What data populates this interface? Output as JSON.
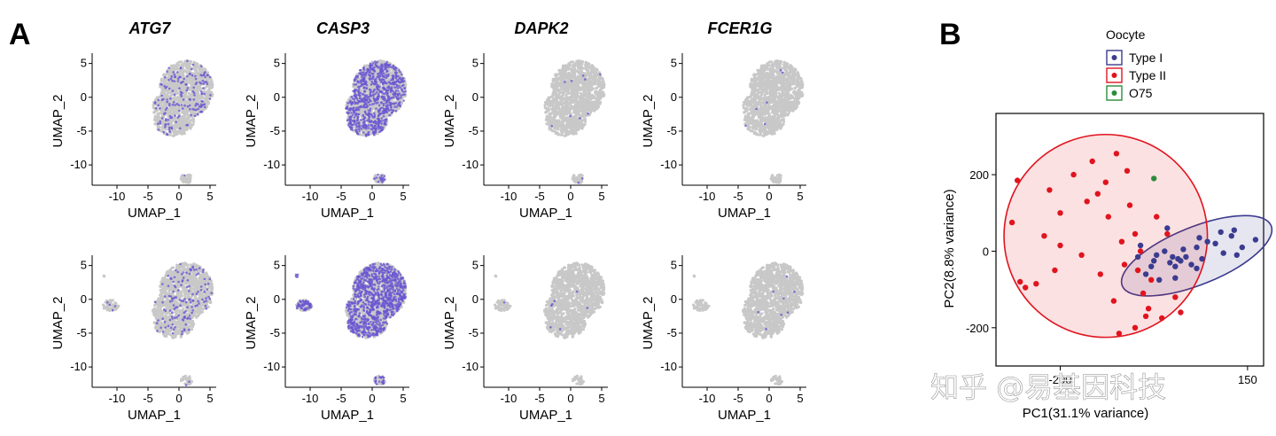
{
  "panel_labels": {
    "a": "A",
    "b": "B"
  },
  "watermark": "知乎 @易基因科技",
  "colors": {
    "background_cells": "#c8c8c8",
    "expression": "#6a56d2",
    "type1": "#3b3b8f",
    "type2": "#e0141e",
    "o75": "#2e8b3c"
  },
  "chart_data": [
    {
      "type": "scatter",
      "panel": "A",
      "subtype": "umap-feature-plot-grid",
      "genes": [
        "ATG7",
        "CASP3",
        "DAPK2",
        "FCER1G"
      ],
      "xlabel": "UMAP_1",
      "ylabel": "UMAP_2",
      "xlim": [
        -14,
        6
      ],
      "ylim": [
        -13,
        6
      ],
      "xticks": [
        -10,
        -5,
        0,
        5
      ],
      "yticks": [
        5,
        0,
        -5,
        -10
      ],
      "rows": [
        {
          "row": 1,
          "expression_density": {
            "ATG7": 0.12,
            "CASP3": 0.55,
            "DAPK2": 0.008,
            "FCER1G": 0.004
          },
          "has_left_cluster": false
        },
        {
          "row": 2,
          "expression_density": {
            "ATG7": 0.1,
            "CASP3": 0.7,
            "DAPK2": 0.006,
            "FCER1G": 0.006
          },
          "has_left_cluster": true
        }
      ]
    },
    {
      "type": "scatter",
      "panel": "B",
      "title": "",
      "xlabel": "PC1(31.1% variance)",
      "ylabel": "PC2(8.8% variance)",
      "xlim": [
        -320,
        180
      ],
      "ylim": [
        -300,
        360
      ],
      "xticks": [
        -200,
        150
      ],
      "yticks": [
        200,
        0,
        -200
      ],
      "legend": {
        "title": "Oocyte",
        "position": "top",
        "entries": [
          "Type I",
          "Type II",
          "O75"
        ]
      },
      "series": [
        {
          "name": "Type I",
          "points": [
            [
              -20,
              -10
            ],
            [
              -5,
              0
            ],
            [
              5,
              -30
            ],
            [
              10,
              -15
            ],
            [
              15,
              -40
            ],
            [
              20,
              -20
            ],
            [
              25,
              -25
            ],
            [
              30,
              5
            ],
            [
              35,
              -15
            ],
            [
              -15,
              -75
            ],
            [
              -40,
              -60
            ],
            [
              -25,
              -25
            ],
            [
              -55,
              -15
            ],
            [
              45,
              -35
            ],
            [
              55,
              10
            ],
            [
              65,
              -20
            ],
            [
              75,
              25
            ],
            [
              60,
              35
            ],
            [
              90,
              20
            ],
            [
              105,
              -5
            ],
            [
              120,
              40
            ],
            [
              125,
              55
            ],
            [
              140,
              10
            ],
            [
              165,
              30
            ],
            [
              -50,
              15
            ],
            [
              55,
              -45
            ],
            [
              0,
              60
            ],
            [
              100,
              50
            ],
            [
              -30,
              -40
            ],
            [
              15,
              -70
            ],
            [
              130,
              -10
            ]
          ]
        },
        {
          "name": "Type II",
          "points": [
            [
              -280,
              185
            ],
            [
              -290,
              75
            ],
            [
              -275,
              -80
            ],
            [
              -265,
              -95
            ],
            [
              -245,
              -85
            ],
            [
              -210,
              -50
            ],
            [
              -220,
              160
            ],
            [
              -200,
              100
            ],
            [
              -175,
              200
            ],
            [
              -150,
              130
            ],
            [
              -140,
              235
            ],
            [
              -130,
              150
            ],
            [
              -115,
              180
            ],
            [
              -110,
              90
            ],
            [
              -95,
              255
            ],
            [
              -85,
              25
            ],
            [
              -80,
              -35
            ],
            [
              -75,
              210
            ],
            [
              -70,
              120
            ],
            [
              -60,
              45
            ],
            [
              -55,
              -50
            ],
            [
              -50,
              0
            ],
            [
              -45,
              -110
            ],
            [
              -40,
              -170
            ],
            [
              -35,
              -150
            ],
            [
              -30,
              -75
            ],
            [
              -20,
              90
            ],
            [
              -10,
              -175
            ],
            [
              0,
              45
            ],
            [
              15,
              -120
            ],
            [
              25,
              -160
            ],
            [
              -160,
              -10
            ],
            [
              -125,
              -60
            ],
            [
              -200,
              15
            ],
            [
              -230,
              40
            ],
            [
              -100,
              -130
            ],
            [
              -60,
              -200
            ],
            [
              -90,
              -215
            ]
          ]
        },
        {
          "name": "O75",
          "points": [
            [
              -25,
              190
            ]
          ]
        }
      ],
      "ellipses": [
        {
          "series": "Type I",
          "center": [
            55,
            -12
          ],
          "rx": 150,
          "ry": 75,
          "rotation_deg": -22
        },
        {
          "series": "Type II",
          "center": [
            -115,
            40
          ],
          "rx": 190,
          "ry": 265,
          "rotation_deg": 0
        }
      ]
    }
  ]
}
